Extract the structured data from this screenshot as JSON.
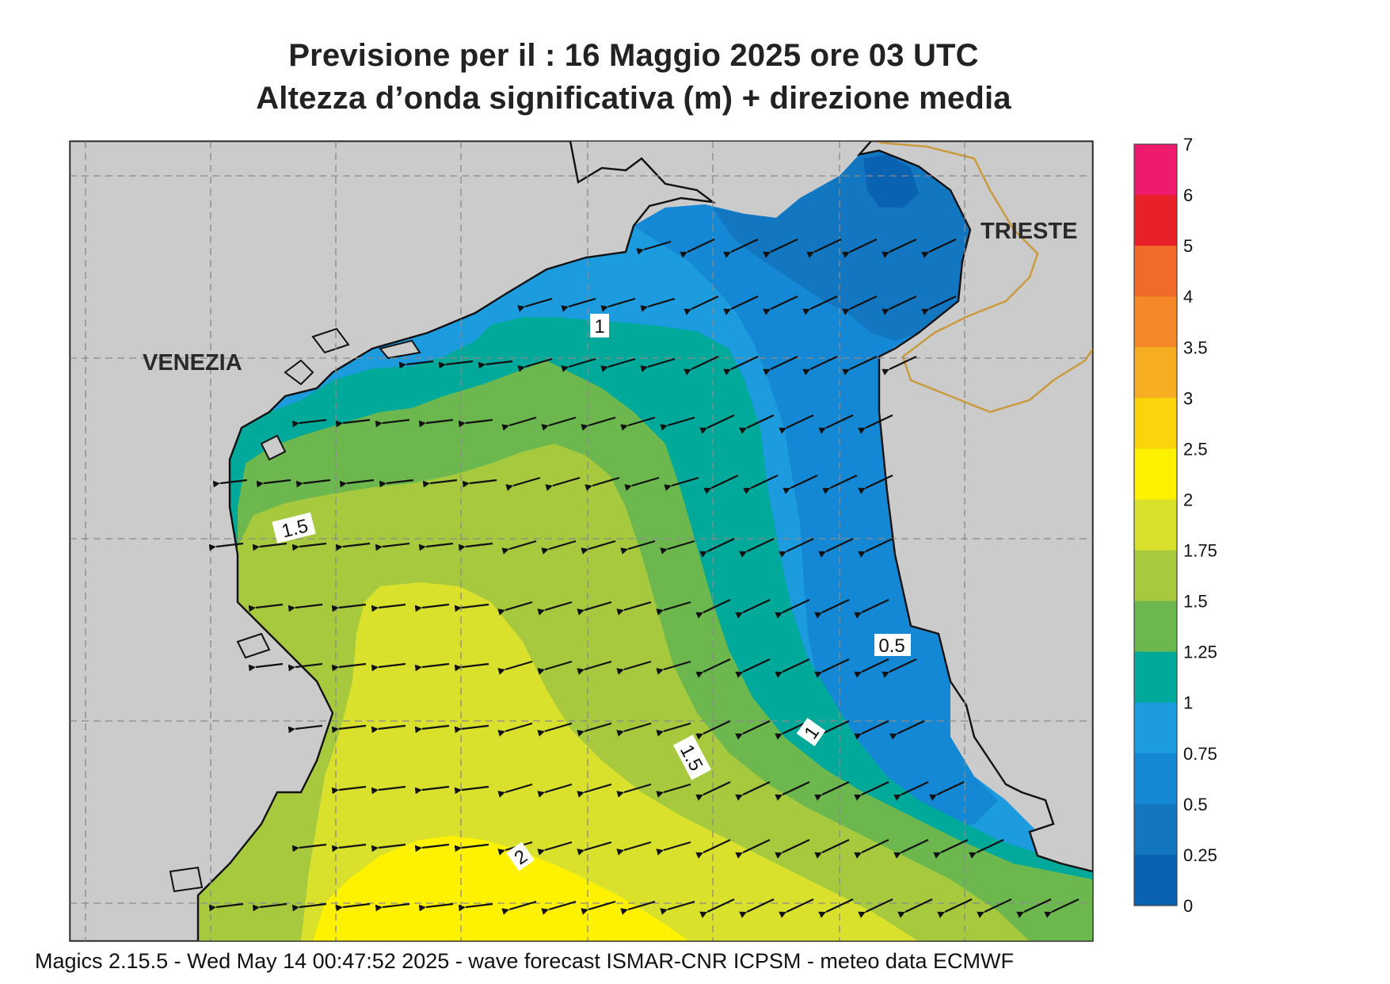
{
  "header": {
    "line1": "Previsione per il  :  16   Maggio  2025   ore 03 UTC",
    "line2": "Altezza d’onda significativa (m) + direzione media"
  },
  "map": {
    "cities": [
      "VENEZIA",
      "TRIESTE"
    ],
    "contour_labels": [
      "1",
      "1.5",
      "1.5",
      "1",
      "0.5",
      "2"
    ],
    "land_color": "#cbcbcb",
    "coast_color": "#111111",
    "border_color": "#c99a3e",
    "arrow_direction": "toward west / south-west"
  },
  "colorbar": {
    "labels": [
      "7",
      "6",
      "5",
      "4",
      "3.5",
      "3",
      "2.5",
      "2",
      "1.75",
      "1.5",
      "1.25",
      "1",
      "0.75",
      "0.5",
      "0.25",
      "0"
    ],
    "colors": [
      "#ee1a6e",
      "#e8202a",
      "#f06a2a",
      "#f5892a",
      "#f6ad22",
      "#fbd40c",
      "#fff200",
      "#d9e12c",
      "#a6c93d",
      "#6cb84f",
      "#00a99a",
      "#1c9cde",
      "#1488d4",
      "#1276c1",
      "#0a62b2"
    ]
  },
  "footer": {
    "text": "Magics 2.15.5 - Wed May 14 00:47:52 2025 - wave forecast  ISMAR-CNR  ICPSM - meteo data   ECMWF"
  }
}
